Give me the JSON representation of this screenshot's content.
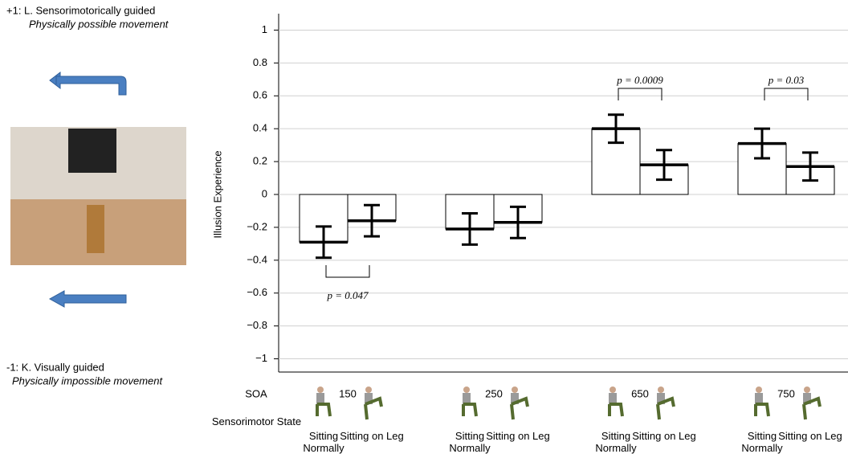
{
  "chart_data": {
    "type": "bar",
    "legend_texts": {
      "top": "+1: L. Sensorimotorically guided",
      "top_sub": "Physically possible movement",
      "bottom": "-1: K. Visually guided",
      "bottom_sub": "Physically impossible movement"
    },
    "ylabel": "Illusion Experience",
    "xlabel": "SOA",
    "xlabel2": "Sensorimotor State",
    "categories": [
      "150",
      "250",
      "650",
      "750"
    ],
    "series": [
      {
        "name": "Sitting Normally",
        "color": "#ffffff",
        "values": [
          -0.29,
          -0.21,
          0.4,
          0.31
        ],
        "errors": [
          0.095,
          0.095,
          0.085,
          0.09
        ]
      },
      {
        "name": "Sitting on Leg",
        "color": "#ffffff",
        "values": [
          -0.16,
          -0.17,
          0.18,
          0.17
        ],
        "errors": [
          0.095,
          0.095,
          0.09,
          0.085
        ]
      }
    ],
    "annotations": [
      "p = 0.047",
      "p = 0.0009",
      "p = 0.03"
    ],
    "ylim": [
      -1.1,
      1.1
    ],
    "yticks": [
      {
        "value": -1,
        "label": "−1"
      },
      {
        "value": -0.8,
        "label": "−0.8"
      },
      {
        "value": -0.6,
        "label": "−0.6"
      },
      {
        "value": -0.4,
        "label": "−0.4"
      },
      {
        "value": -0.2,
        "label": "−0.2"
      },
      0,
      0.2,
      0.4,
      0.6,
      0.8,
      1
    ],
    "grid": true
  }
}
